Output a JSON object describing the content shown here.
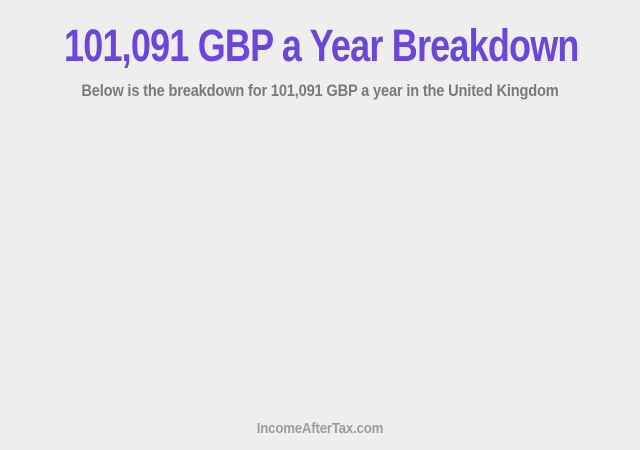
{
  "page": {
    "title": "101,091 GBP a Year Breakdown",
    "subtitle": "Below is the breakdown for 101,091 GBP a year in the United Kingdom",
    "footer": "IncomeAfterTax.com",
    "colors": {
      "background": "#efeeee",
      "title": "#6b46d8",
      "subtitle": "#7a7a7a",
      "footer": "#9c9c9c"
    }
  }
}
